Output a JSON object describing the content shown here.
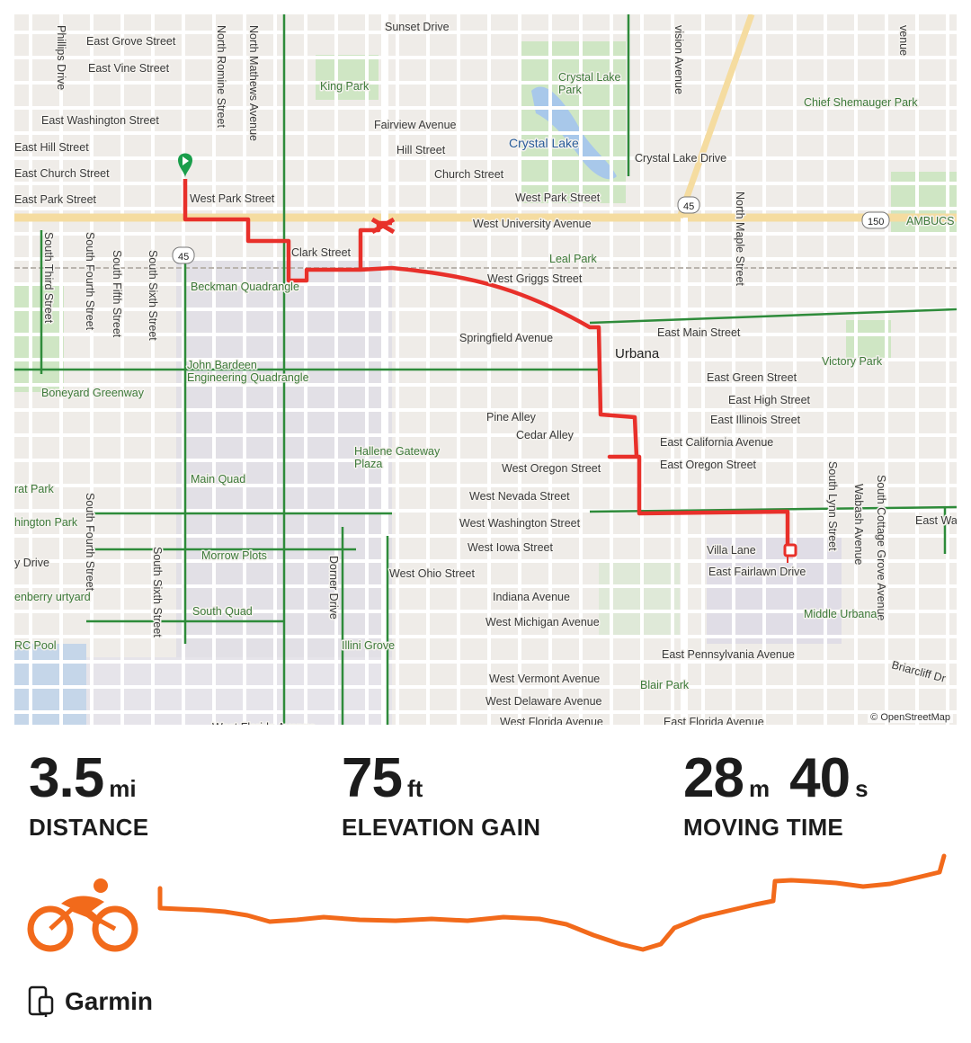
{
  "map": {
    "attribution": "© OpenStreetMap",
    "streets": [
      "Sunset Drive",
      "East Grove Street",
      "East Vine Street",
      "East Washington Street",
      "East Hill Street",
      "East Church Street",
      "East Park Street",
      "West Park Street",
      "Clark Street",
      "West University Avenue",
      "Fairview Avenue",
      "Hill Street",
      "Church Street",
      "Crystal Lake Drive",
      "West Park Street",
      "West Griggs Street",
      "Springfield Avenue",
      "East Main Street",
      "East Green Street",
      "East High Street",
      "East Illinois Street",
      "Pine Alley",
      "Cedar Alley",
      "East California Avenue",
      "East Oregon Street",
      "West Oregon Street",
      "West Nevada Street",
      "West Washington Street",
      "West Iowa Street",
      "Villa Lane",
      "East Fairlawn Drive",
      "West Ohio Street",
      "Indiana Avenue",
      "West Michigan Avenue",
      "East Pennsylvania Avenue",
      "West Vermont Avenue",
      "West Delaware Avenue",
      "West Florida Avenue",
      "East Florida Avenue",
      "West Florida Avenue",
      "Briarcliff Dr",
      "Phillips Drive",
      "North Romine Street",
      "North Mathews Avenue",
      "South Third Street",
      "South Fourth Street",
      "South Fifth Street",
      "South Sixth Street",
      "South Fourth Street",
      "South Sixth Street",
      "Dorner Drive",
      "North Maple Street",
      "South Lynn Street",
      "Wabash Avenue",
      "South Cottage Grove Avenue",
      "vision Avenue",
      "venue",
      "East Wa",
      "y Drive"
    ],
    "places": [
      "King Park",
      "Crystal Lake Park",
      "Chief Shemauger Park",
      "Crystal Lake",
      "Leal Park",
      "AMBUCS Park",
      "Beckman Quadrangle",
      "John Bardeen Engineering Quadrangle",
      "Boneyard Greenway",
      "Hallene Gateway Plaza",
      "Main Quad",
      "Victory Park",
      "Urbana",
      "Morrow Plots",
      "South Quad",
      "Illini Grove",
      "Blair Park",
      "Middle Urbana",
      "rat Park",
      "hington Park",
      "enberry urtyard",
      "RC Pool"
    ],
    "route_shields": [
      "45",
      "45",
      "150"
    ],
    "colors": {
      "route": "#e8302a",
      "start": "#1a9e4b",
      "cycleway": "#2e8b3a",
      "water": "#a8c8ea"
    }
  },
  "stats": [
    {
      "value": "3.5",
      "unit": "mi",
      "label": "DISTANCE"
    },
    {
      "value": "75",
      "unit": "ft",
      "label": "ELEVATION GAIN"
    },
    {
      "value": "28",
      "unit": "m",
      "value2": "40",
      "unit2": "s",
      "label": "MOVING TIME"
    }
  ],
  "activity": {
    "icon": "cycling-icon",
    "color": "#f26a1b"
  },
  "device": {
    "name": "Garmin",
    "icon": "watch-phone-icon"
  }
}
